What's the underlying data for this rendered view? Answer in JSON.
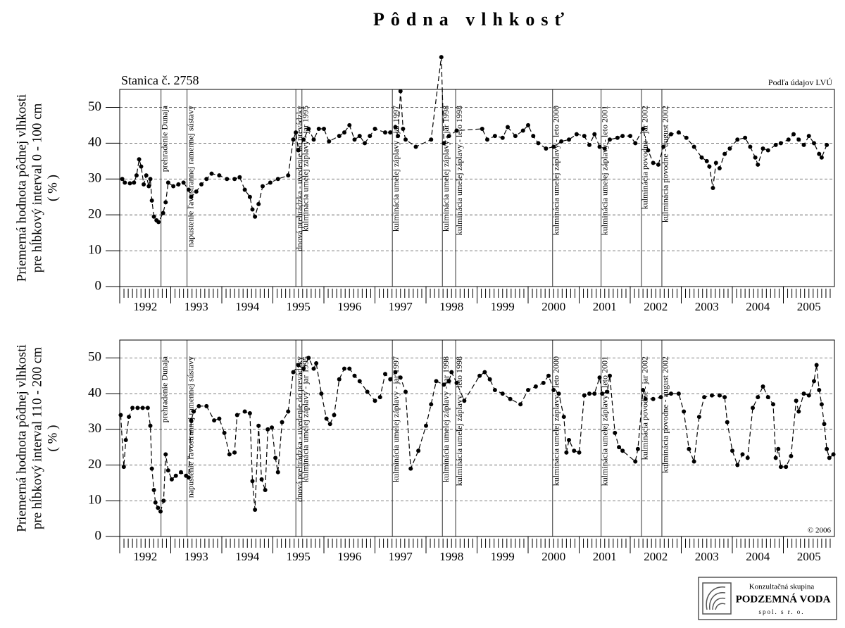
{
  "title": "Pôdna vlhkosť",
  "station": "Stanica č. 2758",
  "source": "Podľa údajov LVÚ",
  "copyright": "© 2006",
  "logo": {
    "line1": "Konzultačná skupina",
    "line2": "PODZEMNÁ VODA",
    "line3": "spol. s r. o."
  },
  "chart_data": [
    {
      "type": "line",
      "ylabel": [
        "Priemerná hodnota pôdnej vlhkosti",
        "pre hĺbkový interval 0 - 100 cm",
        "( % )"
      ],
      "color": "#000000",
      "xlim": [
        1992,
        2006
      ],
      "ylim": [
        0,
        55
      ],
      "yticks": [
        0,
        10,
        20,
        30,
        40,
        50
      ],
      "grid": true,
      "xticks": [
        {
          "value": 1992.5,
          "label": "1992"
        },
        {
          "value": 1993.5,
          "label": "1993"
        },
        {
          "value": 1994.5,
          "label": "1994"
        },
        {
          "value": 1995.5,
          "label": "1995"
        },
        {
          "value": 1996.5,
          "label": "1996"
        },
        {
          "value": 1997.5,
          "label": "1997"
        },
        {
          "value": 1998.5,
          "label": "1998"
        },
        {
          "value": 1999.5,
          "label": "1999"
        },
        {
          "value": 2000.5,
          "label": "2000"
        },
        {
          "value": 2001.5,
          "label": "2001"
        },
        {
          "value": 2002.5,
          "label": "2002"
        },
        {
          "value": 2003.5,
          "label": "2003"
        },
        {
          "value": 2004.5,
          "label": "2004"
        },
        {
          "value": 2005.5,
          "label": "2005"
        }
      ],
      "events": [
        {
          "x": 1992.81,
          "label": "prehradenie Dunaja"
        },
        {
          "x": 1993.32,
          "label": "napustenie ľavostrannej ramennej sústavy"
        },
        {
          "x": 1995.45,
          "label": "dnová prehrádzka - uvedenie do prevádzky"
        },
        {
          "x": 1995.57,
          "label": "kulminácia umelej záplavy - jar 1995"
        },
        {
          "x": 1997.34,
          "label": "kulminácia umelej záplavy - jar 1997"
        },
        {
          "x": 1998.32,
          "label": "kulminácia umelej záplavy - jar 1998"
        },
        {
          "x": 1998.58,
          "label": "kulminácia umelej záplavy - leto 1998"
        },
        {
          "x": 2000.48,
          "label": "kulminácia umelej záplavy - leto 2000"
        },
        {
          "x": 2001.43,
          "label": "kulminácia umelej záplavy - leto 2001"
        },
        {
          "x": 2002.22,
          "label": "kulminácia povodne - jar 2002"
        },
        {
          "x": 2002.62,
          "label": "kulminácia povodne - august 2002"
        }
      ],
      "x": [
        1992.05,
        1992.1,
        1992.2,
        1992.28,
        1992.33,
        1992.38,
        1992.42,
        1992.47,
        1992.52,
        1992.57,
        1992.6,
        1992.63,
        1992.67,
        1992.72,
        1992.76,
        1992.85,
        1992.9,
        1992.95,
        1993.05,
        1993.15,
        1993.25,
        1993.35,
        1993.4,
        1993.5,
        1993.6,
        1993.7,
        1993.8,
        1993.95,
        1994.1,
        1994.25,
        1994.35,
        1994.45,
        1994.55,
        1994.6,
        1994.65,
        1994.72,
        1994.8,
        1994.95,
        1995.1,
        1995.3,
        1995.4,
        1995.45,
        1995.5,
        1995.6,
        1995.7,
        1995.8,
        1995.9,
        1996.0,
        1996.1,
        1996.3,
        1996.4,
        1996.5,
        1996.6,
        1996.7,
        1996.8,
        1996.9,
        1997.0,
        1997.2,
        1997.3,
        1997.4,
        1997.45,
        1997.5,
        1997.55,
        1997.6,
        1997.8,
        1998.1,
        1998.3,
        1998.35,
        1998.45,
        1998.6,
        1999.1,
        1999.2,
        1999.35,
        1999.5,
        1999.6,
        1999.75,
        1999.9,
        2000.0,
        2000.1,
        2000.2,
        2000.35,
        2000.5,
        2000.65,
        2000.8,
        2000.95,
        2001.1,
        2001.2,
        2001.3,
        2001.4,
        2001.5,
        2001.6,
        2001.75,
        2001.85,
        2002.0,
        2002.1,
        2002.25,
        2002.35,
        2002.45,
        2002.55,
        2002.65,
        2002.8,
        2002.95,
        2003.1,
        2003.25,
        2003.4,
        2003.5,
        2003.55,
        2003.62,
        2003.68,
        2003.75,
        2003.85,
        2003.95,
        2004.1,
        2004.25,
        2004.35,
        2004.45,
        2004.5,
        2004.6,
        2004.7,
        2004.85,
        2004.95,
        2005.1,
        2005.2,
        2005.3,
        2005.4,
        2005.5,
        2005.6,
        2005.7,
        2005.75,
        2005.85
      ],
      "values": [
        30,
        29,
        28.8,
        29,
        31,
        35.5,
        33.5,
        28.5,
        31,
        28,
        30,
        24,
        19.5,
        18.5,
        18,
        20.5,
        23.5,
        29,
        28,
        28.5,
        29,
        27,
        25,
        26.5,
        28.5,
        30,
        31.5,
        31,
        30,
        30,
        30.5,
        27,
        25,
        21.5,
        19.5,
        23,
        28,
        29,
        30,
        31,
        41,
        43,
        38,
        41,
        44,
        41,
        44,
        44,
        40.5,
        42,
        43,
        45,
        41,
        42,
        40,
        42,
        44,
        43,
        43,
        44.5,
        42,
        54.5,
        44,
        41,
        39,
        41,
        64,
        40,
        42,
        43.5,
        44,
        41,
        42,
        41.5,
        44.5,
        42,
        43.5,
        45,
        42,
        40,
        38.5,
        39,
        40.5,
        41,
        42.5,
        42,
        39.5,
        42.5,
        39,
        38.5,
        41,
        41.5,
        42,
        42,
        40,
        44,
        38,
        34.5,
        34,
        39,
        42.5,
        43,
        41.5,
        39,
        36,
        35,
        33.5,
        27.5,
        34.5,
        33,
        37,
        38.5,
        41,
        41.5,
        39,
        36,
        34,
        38.5,
        38,
        39.5,
        40,
        41,
        42.5,
        41,
        39.5,
        42,
        40,
        37,
        36,
        39.5
      ]
    },
    {
      "type": "line",
      "ylabel": [
        "Priemerná hodnota pôdnej vlhkosti",
        "pre hĺbkový interval 110 - 200 cm",
        "( % )"
      ],
      "color": "#000000",
      "xlim": [
        1992,
        2006
      ],
      "ylim": [
        0,
        55
      ],
      "yticks": [
        0,
        10,
        20,
        30,
        40,
        50
      ],
      "grid": true,
      "xticks": [
        {
          "value": 1992.5,
          "label": "1992"
        },
        {
          "value": 1993.5,
          "label": "1993"
        },
        {
          "value": 1994.5,
          "label": "1994"
        },
        {
          "value": 1995.5,
          "label": "1995"
        },
        {
          "value": 1996.5,
          "label": "1996"
        },
        {
          "value": 1997.5,
          "label": "1997"
        },
        {
          "value": 1998.5,
          "label": "1998"
        },
        {
          "value": 1999.5,
          "label": "1999"
        },
        {
          "value": 2000.5,
          "label": "2000"
        },
        {
          "value": 2001.5,
          "label": "2001"
        },
        {
          "value": 2002.5,
          "label": "2002"
        },
        {
          "value": 2003.5,
          "label": "2003"
        },
        {
          "value": 2004.5,
          "label": "2004"
        },
        {
          "value": 2005.5,
          "label": "2005"
        }
      ],
      "events": [
        {
          "x": 1992.81,
          "label": "prehradenie Dunaja"
        },
        {
          "x": 1993.32,
          "label": "napustenie ľavostrannej ramennej sústavy"
        },
        {
          "x": 1995.45,
          "label": "dnová prehrádzka - uvedenie do prevádzky"
        },
        {
          "x": 1995.57,
          "label": "kulminácia umelej záplavy - jar 1995"
        },
        {
          "x": 1997.34,
          "label": "kulminácia umelej záplavy - jar 1997"
        },
        {
          "x": 1998.32,
          "label": "kulminácia umelej záplavy - jar 1998"
        },
        {
          "x": 1998.58,
          "label": "kulminácia umelej záplavy - leto 1998"
        },
        {
          "x": 2000.48,
          "label": "kulminácia umelej záplavy - leto 2000"
        },
        {
          "x": 2001.43,
          "label": "kulminácia umelej záplavy - leto 2001"
        },
        {
          "x": 2002.22,
          "label": "kulminácia povodne - jar 2002"
        },
        {
          "x": 2002.62,
          "label": "kulminácia povodne - august 2002"
        }
      ],
      "x": [
        1992.02,
        1992.08,
        1992.12,
        1992.18,
        1992.25,
        1992.35,
        1992.45,
        1992.55,
        1992.6,
        1992.63,
        1992.67,
        1992.7,
        1992.75,
        1992.8,
        1992.86,
        1992.9,
        1992.95,
        1993.02,
        1993.1,
        1993.2,
        1993.3,
        1993.35,
        1993.4,
        1993.45,
        1993.55,
        1993.7,
        1993.85,
        1993.95,
        1994.05,
        1994.15,
        1994.25,
        1994.3,
        1994.45,
        1994.55,
        1994.6,
        1994.65,
        1994.72,
        1994.78,
        1994.85,
        1994.9,
        1994.98,
        1995.05,
        1995.1,
        1995.18,
        1995.3,
        1995.4,
        1995.5,
        1995.6,
        1995.7,
        1995.8,
        1995.85,
        1995.95,
        1996.05,
        1996.12,
        1996.2,
        1996.3,
        1996.4,
        1996.5,
        1996.6,
        1996.7,
        1996.85,
        1997.0,
        1997.1,
        1997.2,
        1997.3,
        1997.4,
        1997.5,
        1997.6,
        1997.7,
        1997.85,
        1998.0,
        1998.1,
        1998.2,
        1998.35,
        1998.45,
        1998.5,
        1998.6,
        1998.75,
        1999.05,
        1999.15,
        1999.25,
        1999.35,
        1999.5,
        1999.65,
        1999.85,
        2000.0,
        2000.15,
        2000.3,
        2000.4,
        2000.5,
        2000.6,
        2000.7,
        2000.75,
        2000.8,
        2000.9,
        2001.0,
        2001.1,
        2001.2,
        2001.3,
        2001.4,
        2001.45,
        2001.55,
        2001.6,
        2001.7,
        2001.78,
        2001.85,
        2002.1,
        2002.15,
        2002.25,
        2002.3,
        2002.45,
        2002.6,
        2002.8,
        2002.95,
        2003.05,
        2003.15,
        2003.25,
        2003.35,
        2003.45,
        2003.6,
        2003.75,
        2003.85,
        2003.9,
        2004.0,
        2004.1,
        2004.2,
        2004.3,
        2004.4,
        2004.5,
        2004.6,
        2004.7,
        2004.8,
        2004.85,
        2004.9,
        2004.95,
        2005.05,
        2005.15,
        2005.25,
        2005.3,
        2005.4,
        2005.5,
        2005.6,
        2005.65,
        2005.7,
        2005.75,
        2005.8,
        2005.85,
        2005.9,
        2005.98
      ],
      "values": [
        34,
        19.5,
        27,
        33.5,
        36,
        36,
        36,
        36,
        31,
        19,
        13,
        9.5,
        8,
        7,
        10,
        23,
        18.5,
        16,
        17,
        18,
        17,
        16.5,
        32.5,
        35,
        36.5,
        36.5,
        32.5,
        33,
        29,
        23,
        23.5,
        34,
        35,
        34.5,
        15.5,
        7.5,
        31,
        16,
        13,
        30,
        30.5,
        22,
        18,
        32,
        35,
        46,
        48,
        47,
        50,
        47,
        48.5,
        40,
        33,
        31.5,
        34,
        44,
        47,
        47,
        45,
        43.5,
        40.5,
        38,
        39,
        45.5,
        44,
        46,
        44.5,
        40.5,
        19,
        24,
        31,
        37,
        43.5,
        42.5,
        43.5,
        46,
        43,
        38,
        45,
        46,
        44,
        41,
        40,
        38.5,
        37,
        41,
        42,
        43,
        45,
        41,
        40,
        33.5,
        23.5,
        27,
        24,
        23.5,
        39.5,
        40,
        40,
        44.5,
        40,
        40.5,
        45,
        29,
        25,
        24,
        21,
        24.5,
        41,
        38.5,
        38.5,
        39,
        40,
        40,
        35,
        24.5,
        21,
        33.5,
        39,
        39.5,
        39.5,
        39,
        32,
        24,
        20,
        23,
        22,
        36,
        39,
        42,
        39,
        37,
        22,
        24.5,
        19.5,
        19.5,
        22.5,
        38,
        35,
        40,
        39.5,
        43.5,
        48,
        41,
        37,
        31.5,
        24.5,
        22,
        23
      ]
    }
  ]
}
